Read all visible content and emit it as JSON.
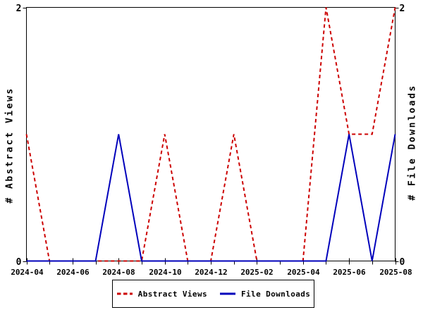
{
  "chart_data": {
    "type": "line",
    "title": "",
    "categories": [
      "2024-04",
      "2024-05",
      "2024-06",
      "2024-07",
      "2024-08",
      "2024-09",
      "2024-10",
      "2024-11",
      "2024-12",
      "2025-01",
      "2025-02",
      "2025-03",
      "2025-04",
      "2025-05",
      "2025-06",
      "2025-07",
      "2025-08"
    ],
    "x_tick_labels": [
      "2024-04",
      "2024-06",
      "2024-08",
      "2024-10",
      "2024-12",
      "2025-02",
      "2025-04",
      "2025-06",
      "2025-08"
    ],
    "series": [
      {
        "name": "Abstract Views",
        "color": "#cc0000",
        "style": "dashed",
        "values": [
          1,
          0,
          0,
          0,
          0,
          0,
          1,
          0,
          0,
          1,
          0,
          0,
          0,
          2,
          1,
          1,
          2
        ]
      },
      {
        "name": "File Downloads",
        "color": "#0000bb",
        "style": "solid",
        "values": [
          0,
          0,
          0,
          0,
          1,
          0,
          0,
          0,
          0,
          0,
          0,
          0,
          0,
          0,
          1,
          0,
          1
        ]
      }
    ],
    "ylim": [
      0,
      2
    ],
    "y_ticks": [
      {
        "value": 0,
        "label": "0"
      },
      {
        "value": 2,
        "label": "2"
      }
    ],
    "left_axis_title": "# Abstract Views",
    "right_axis_title": "# File Downloads",
    "grid": false,
    "legend_position": "bottom-center",
    "axis_color": "#000000",
    "background_color": "#ffffff"
  }
}
